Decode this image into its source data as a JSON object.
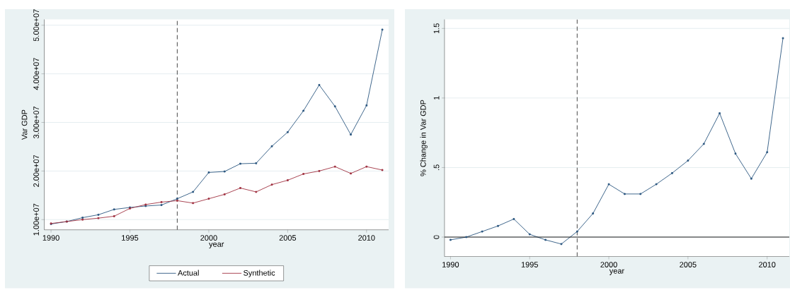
{
  "chart_data": [
    {
      "type": "line",
      "xlabel": "year",
      "ylabel": "Var GDP",
      "x": [
        1990,
        1991,
        1992,
        1993,
        1994,
        1995,
        1996,
        1997,
        1998,
        1999,
        2000,
        2001,
        2002,
        2003,
        2004,
        2005,
        2006,
        2007,
        2008,
        2009,
        2010,
        2011
      ],
      "series": [
        {
          "name": "Actual",
          "color": "#2a5680",
          "values": [
            9100000,
            9600000,
            10400000,
            11000000,
            12100000,
            12500000,
            12800000,
            13000000,
            14300000,
            15700000,
            19700000,
            19900000,
            21500000,
            21600000,
            25100000,
            28000000,
            32400000,
            37700000,
            33300000,
            27500000,
            33500000,
            49100000
          ]
        },
        {
          "name": "Synthetic",
          "color": "#a03040",
          "values": [
            9200000,
            9600000,
            10000000,
            10300000,
            10700000,
            12300000,
            13100000,
            13600000,
            13900000,
            13400000,
            14300000,
            15200000,
            16500000,
            15700000,
            17200000,
            18100000,
            19400000,
            20000000,
            20900000,
            19500000,
            20900000,
            20200000
          ]
        }
      ],
      "xlim": [
        1989.57,
        2011.4
      ],
      "ylim": [
        7900000,
        51200000
      ],
      "xticks": [
        1990,
        1995,
        2000,
        2005,
        2010
      ],
      "yticks": [
        {
          "value": 10000000,
          "label": "1.00e+07"
        },
        {
          "value": 20000000,
          "label": "2.00e+07"
        },
        {
          "value": 30000000,
          "label": "3.00e+07"
        },
        {
          "value": 40000000,
          "label": "4.00e+07"
        },
        {
          "value": 50000000,
          "label": "5.00e+07"
        }
      ],
      "ref_lines": [
        {
          "axis": "x",
          "value": 1998,
          "color": "#333333",
          "line_style": "dashed"
        }
      ],
      "grid": "y",
      "legend": "bottom",
      "marker": "square",
      "line_style": "solid"
    },
    {
      "type": "line",
      "xlabel": "year",
      "ylabel": "% Change in Var GDP",
      "x": [
        1990,
        1991,
        1992,
        1993,
        1994,
        1995,
        1996,
        1997,
        1998,
        1999,
        2000,
        2001,
        2002,
        2003,
        2004,
        2005,
        2006,
        2007,
        2008,
        2009,
        2010,
        2011
      ],
      "series": [
        {
          "color": "#2a5680",
          "values": [
            -0.02,
            0.0,
            0.04,
            0.08,
            0.13,
            0.02,
            -0.02,
            -0.05,
            0.04,
            0.17,
            0.38,
            0.31,
            0.31,
            0.38,
            0.46,
            0.55,
            0.67,
            0.89,
            0.6,
            0.42,
            0.61,
            1.43
          ]
        }
      ],
      "xlim": [
        1989.62,
        2011.4
      ],
      "ylim": [
        -0.14,
        1.565
      ],
      "xticks": [
        1990,
        1995,
        2000,
        2005,
        2010
      ],
      "yticks": [
        0,
        {
          "value": 0.5,
          "label": ".5"
        },
        1,
        1.5
      ],
      "ref_lines": [
        {
          "axis": "x",
          "value": 1998,
          "color": "#333333",
          "line_style": "dashed"
        },
        {
          "axis": "y",
          "value": 0,
          "color": "#000000",
          "line_style": "solid"
        }
      ],
      "grid": "y",
      "legend": false,
      "marker": "square",
      "line_style": "solid"
    }
  ]
}
